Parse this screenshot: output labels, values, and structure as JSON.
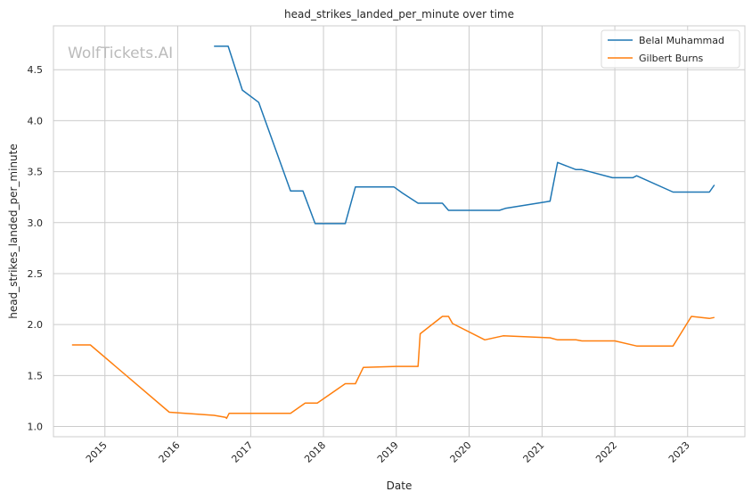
{
  "chart_data": {
    "type": "line",
    "title": "head_strikes_landed_per_minute over time",
    "xlabel": "Date",
    "ylabel": "head_strikes_landed_per_minute",
    "watermark": "WolfTickets.AI",
    "x_ticks": [
      "2015",
      "2016",
      "2017",
      "2018",
      "2019",
      "2020",
      "2021",
      "2022",
      "2023"
    ],
    "y_ticks": [
      "1.0",
      "1.5",
      "2.0",
      "2.5",
      "3.0",
      "3.5",
      "4.0",
      "4.5"
    ],
    "xlim": [
      "2014-04-18",
      "2023-10-15"
    ],
    "ylim": [
      0.9,
      4.93
    ],
    "grid": true,
    "legend_position": "top-right",
    "series": [
      {
        "name": "Belal Muhammad",
        "color": "#1f77b4",
        "points": [
          [
            "2016-07-01",
            4.73
          ],
          [
            "2016-09-10",
            4.73
          ],
          [
            "2016-11-20",
            4.3
          ],
          [
            "2017-02-10",
            4.18
          ],
          [
            "2017-07-20",
            3.31
          ],
          [
            "2017-09-20",
            3.31
          ],
          [
            "2017-11-20",
            2.99
          ],
          [
            "2018-04-20",
            2.99
          ],
          [
            "2018-06-10",
            3.35
          ],
          [
            "2018-12-20",
            3.35
          ],
          [
            "2019-02-01",
            3.29
          ],
          [
            "2019-04-20",
            3.19
          ],
          [
            "2019-08-20",
            3.19
          ],
          [
            "2019-09-20",
            3.12
          ],
          [
            "2020-06-01",
            3.12
          ],
          [
            "2020-07-01",
            3.14
          ],
          [
            "2021-02-10",
            3.21
          ],
          [
            "2021-03-20",
            3.59
          ],
          [
            "2021-06-20",
            3.52
          ],
          [
            "2021-07-20",
            3.52
          ],
          [
            "2021-12-20",
            3.44
          ],
          [
            "2022-04-01",
            3.44
          ],
          [
            "2022-04-20",
            3.46
          ],
          [
            "2022-10-20",
            3.3
          ],
          [
            "2023-04-20",
            3.3
          ],
          [
            "2023-05-15",
            3.37
          ]
        ]
      },
      {
        "name": "Gilbert Burns",
        "color": "#ff7f0e",
        "points": [
          [
            "2014-07-20",
            1.8
          ],
          [
            "2014-10-20",
            1.8
          ],
          [
            "2015-11-20",
            1.14
          ],
          [
            "2016-07-01",
            1.11
          ],
          [
            "2016-08-28",
            1.09
          ],
          [
            "2016-09-02",
            1.08
          ],
          [
            "2016-09-15",
            1.13
          ],
          [
            "2017-07-20",
            1.13
          ],
          [
            "2017-10-01",
            1.23
          ],
          [
            "2017-12-01",
            1.23
          ],
          [
            "2018-04-20",
            1.42
          ],
          [
            "2018-06-10",
            1.42
          ],
          [
            "2018-07-20",
            1.58
          ],
          [
            "2019-01-01",
            1.59
          ],
          [
            "2019-04-20",
            1.59
          ],
          [
            "2019-05-01",
            1.91
          ],
          [
            "2019-08-20",
            2.08
          ],
          [
            "2019-09-20",
            2.08
          ],
          [
            "2019-10-10",
            2.01
          ],
          [
            "2020-03-20",
            1.85
          ],
          [
            "2020-06-20",
            1.89
          ],
          [
            "2021-02-10",
            1.87
          ],
          [
            "2021-03-20",
            1.85
          ],
          [
            "2021-06-20",
            1.85
          ],
          [
            "2021-07-20",
            1.84
          ],
          [
            "2022-01-01",
            1.84
          ],
          [
            "2022-04-20",
            1.79
          ],
          [
            "2022-10-20",
            1.79
          ],
          [
            "2023-01-20",
            2.08
          ],
          [
            "2023-04-20",
            2.06
          ],
          [
            "2023-05-15",
            2.07
          ]
        ]
      }
    ]
  }
}
